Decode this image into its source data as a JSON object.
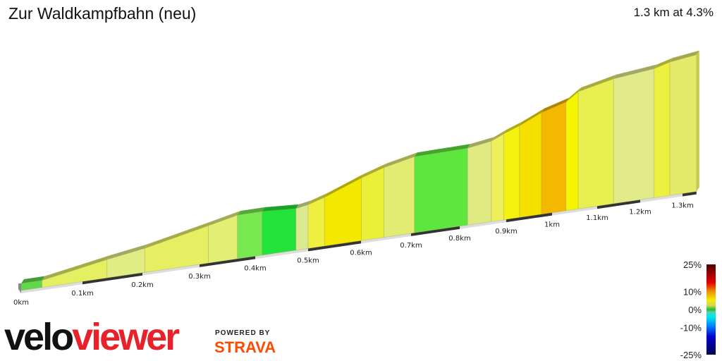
{
  "header": {
    "title": "Zur Waldkampfbahn (neu)",
    "summary": "1.3 km at 4.3%"
  },
  "chart_data": {
    "type": "area",
    "title": "Zur Waldkampfbahn (neu)",
    "x_unit": "km",
    "x_ticks": [
      "0km",
      "0.1km",
      "0.2km",
      "0.3km",
      "0.4km",
      "0.5km",
      "0.6km",
      "0.7km",
      "0.8km",
      "0.9km",
      "1km",
      "1.1km",
      "1.2km",
      "1.3km"
    ],
    "segments": [
      {
        "start_km": 0,
        "end_km": 0.034,
        "color": "#5fd84a"
      },
      {
        "start_km": 0.034,
        "end_km": 0.141,
        "color": "#e4ef62"
      },
      {
        "start_km": 0.141,
        "end_km": 0.204,
        "color": "#e0ec84"
      },
      {
        "start_km": 0.204,
        "end_km": 0.316,
        "color": "#e6ef62"
      },
      {
        "start_km": 0.316,
        "end_km": 0.368,
        "color": "#e1ef75"
      },
      {
        "start_km": 0.368,
        "end_km": 0.413,
        "color": "#77e850"
      },
      {
        "start_km": 0.413,
        "end_km": 0.477,
        "color": "#22e33a"
      },
      {
        "start_km": 0.477,
        "end_km": 0.5,
        "color": "#dde990"
      },
      {
        "start_km": 0.5,
        "end_km": 0.531,
        "color": "#eeef40"
      },
      {
        "start_km": 0.531,
        "end_km": 0.601,
        "color": "#f3e800"
      },
      {
        "start_km": 0.601,
        "end_km": 0.646,
        "color": "#ecef3a"
      },
      {
        "start_km": 0.646,
        "end_km": 0.707,
        "color": "#e3ec72"
      },
      {
        "start_km": 0.707,
        "end_km": 0.817,
        "color": "#5de63d"
      },
      {
        "start_km": 0.817,
        "end_km": 0.868,
        "color": "#e0ea82"
      },
      {
        "start_km": 0.868,
        "end_km": 0.895,
        "color": "#eeef5a"
      },
      {
        "start_km": 0.895,
        "end_km": 0.929,
        "color": "#f5f210"
      },
      {
        "start_km": 0.929,
        "end_km": 0.977,
        "color": "#f5e000"
      },
      {
        "start_km": 0.977,
        "end_km": 1.031,
        "color": "#f5b800"
      },
      {
        "start_km": 1.031,
        "end_km": 1.058,
        "color": "#f5f500"
      },
      {
        "start_km": 1.058,
        "end_km": 1.138,
        "color": "#e8ef50"
      },
      {
        "start_km": 1.138,
        "end_km": 1.233,
        "color": "#e0ea88"
      },
      {
        "start_km": 1.233,
        "end_km": 1.27,
        "color": "#eef040"
      },
      {
        "start_km": 1.27,
        "end_km": 1.333,
        "color": "#e3ea6a"
      }
    ],
    "legend": {
      "labels": [
        "25%",
        "10%",
        "0%",
        "-10%",
        "-25%"
      ],
      "range": [
        -25,
        25
      ],
      "colors": [
        "#000050",
        "#0000d0",
        "#0090ff",
        "#00e8e8",
        "#50d0c0",
        "#20c020",
        "#d0d060",
        "#f0f000",
        "#f09000",
        "#e00000",
        "#500000"
      ]
    }
  },
  "branding": {
    "logo_a": "velo",
    "logo_b": "viewer",
    "powered_by": "POWERED BY",
    "strava": "STRAVA"
  }
}
